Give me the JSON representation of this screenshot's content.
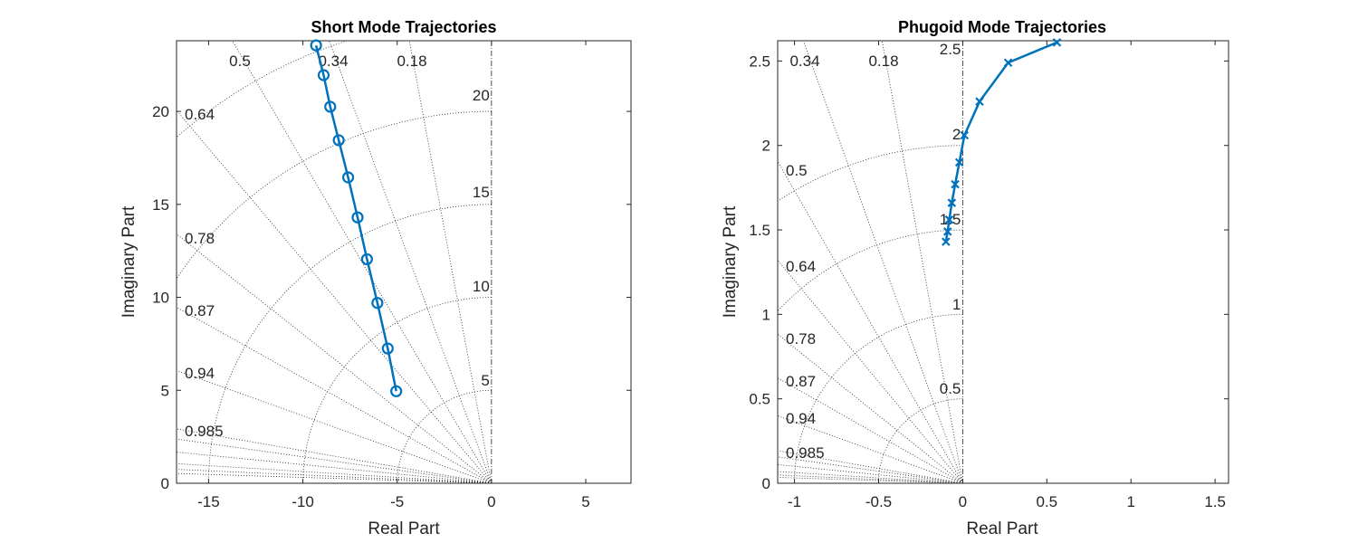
{
  "chart_data": [
    {
      "type": "scatter",
      "title": "Short Mode Trajectories",
      "xlabel": "Real Part",
      "ylabel": "Imaginary Part",
      "xlim": [
        -16.7,
        7.4
      ],
      "ylim": [
        0,
        23.8
      ],
      "xticks": [
        "-15",
        "-10",
        "-5",
        "0",
        "5"
      ],
      "xtick_values": [
        -15,
        -10,
        -5,
        0,
        5
      ],
      "yticks": [
        "0",
        "5",
        "10",
        "15",
        "20"
      ],
      "ytick_values": [
        0,
        5,
        10,
        15,
        20
      ],
      "grid": "s-plane damping/natural-frequency grid",
      "damping_labels": [
        "0.5",
        "0.34",
        "0.18",
        "0.64",
        "0.78",
        "0.87",
        "0.94",
        "0.985"
      ],
      "damping_values": [
        0.5,
        0.34,
        0.18,
        0.64,
        0.78,
        0.87,
        0.94,
        0.985
      ],
      "wn_labels": [
        "20",
        "15",
        "10",
        "5"
      ],
      "wn_values": [
        20,
        15,
        10,
        5
      ],
      "marker": "circle",
      "color": "#0072BD",
      "series": [
        {
          "x": [
            -9.3,
            -8.9,
            -8.55,
            -8.1,
            -7.6,
            -7.1,
            -6.6,
            -6.05,
            -5.5,
            -5.05
          ],
          "y": [
            23.55,
            21.95,
            20.25,
            18.45,
            16.45,
            14.3,
            12.05,
            9.7,
            7.25,
            4.95
          ]
        }
      ]
    },
    {
      "type": "scatter",
      "title": "Phugoid Mode Trajectories",
      "xlabel": "Real Part",
      "ylabel": "Imaginary Part",
      "xlim": [
        -1.1,
        1.58
      ],
      "ylim": [
        0,
        2.62
      ],
      "xticks": [
        "-1",
        "-0.5",
        "0",
        "0.5",
        "1",
        "1.5"
      ],
      "xtick_values": [
        -1,
        -0.5,
        0,
        0.5,
        1,
        1.5
      ],
      "yticks": [
        "0",
        "0.5",
        "1",
        "1.5",
        "2",
        "2.5"
      ],
      "ytick_values": [
        0,
        0.5,
        1,
        1.5,
        2,
        2.5
      ],
      "grid": "s-plane damping/natural-frequency grid",
      "damping_labels": [
        "0.34",
        "0.18",
        "0.5",
        "0.64",
        "0.78",
        "0.87",
        "0.94",
        "0.985"
      ],
      "damping_values": [
        0.34,
        0.18,
        0.5,
        0.64,
        0.78,
        0.87,
        0.94,
        0.985
      ],
      "wn_labels": [
        "2.5",
        "2",
        "1.5",
        "1",
        "0.5"
      ],
      "wn_values": [
        2.5,
        2,
        1.5,
        1,
        0.5
      ],
      "marker": "x",
      "color": "#0072BD",
      "series": [
        {
          "x": [
            0.56,
            0.27,
            0.1,
            0.01,
            -0.02,
            -0.045,
            -0.065,
            -0.08,
            -0.09,
            -0.1
          ],
          "y": [
            2.61,
            2.49,
            2.26,
            2.06,
            1.9,
            1.77,
            1.66,
            1.56,
            1.49,
            1.43
          ]
        }
      ]
    }
  ]
}
